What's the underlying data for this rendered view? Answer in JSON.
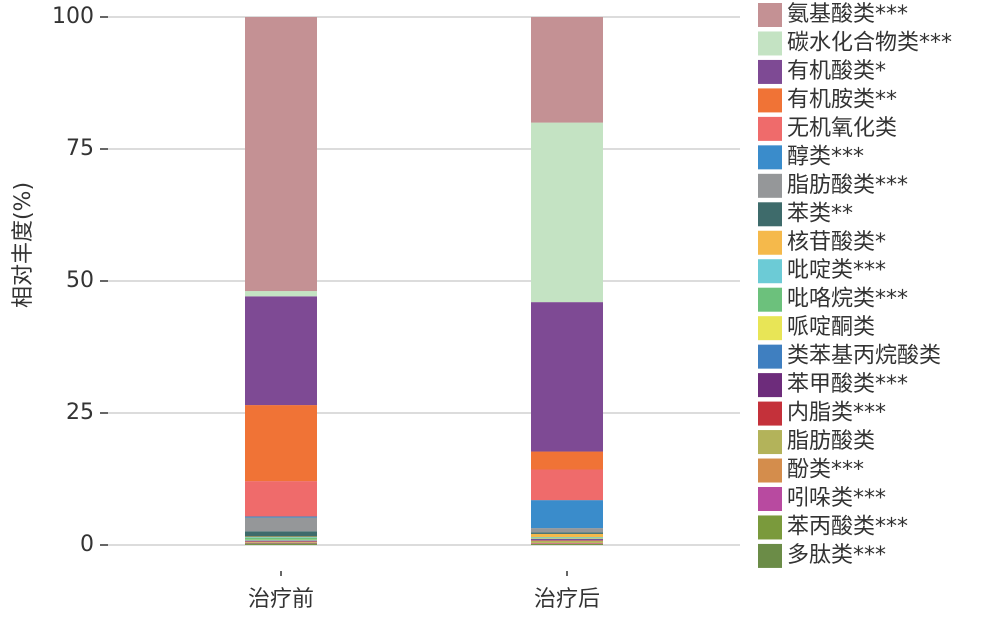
{
  "chart_data": {
    "type": "stacked_bar",
    "ylabel": "相对丰度(%)",
    "categories": [
      "治疗前",
      "治疗后"
    ],
    "ylim": [
      0,
      100
    ],
    "yticks": [
      0,
      25,
      50,
      75,
      100
    ],
    "grid": true,
    "series": [
      {
        "name": "氨基酸类***",
        "color": "#c49194",
        "values": [
          51.9,
          20.0
        ]
      },
      {
        "name": "碳水化合物类***",
        "color": "#c4e3c3",
        "values": [
          1.0,
          34.0
        ]
      },
      {
        "name": "有机酸类*",
        "color": "#7e4a94",
        "values": [
          20.6,
          28.3
        ]
      },
      {
        "name": "有机胺类**",
        "color": "#f07336",
        "values": [
          14.4,
          3.4
        ]
      },
      {
        "name": "无机氧化类",
        "color": "#ef6b6b",
        "values": [
          6.7,
          5.8
        ]
      },
      {
        "name": "醇类***",
        "color": "#3a8ccb",
        "values": [
          0.2,
          5.3
        ]
      },
      {
        "name": "脂肪酸类***",
        "color": "#959799",
        "values": [
          2.6,
          0.8
        ]
      },
      {
        "name": "苯类**",
        "color": "#3e6b6b",
        "values": [
          1.0,
          0.3
        ]
      },
      {
        "name": "核苷酸类*",
        "color": "#f5b94b",
        "values": [
          0.1,
          0.6
        ]
      },
      {
        "name": "吡啶类***",
        "color": "#6ccbd6",
        "values": [
          0.1,
          0.1
        ]
      },
      {
        "name": "吡咯烷类***",
        "color": "#6cc17c",
        "values": [
          0.4,
          0.1
        ]
      },
      {
        "name": "哌啶酮类",
        "color": "#e8e556",
        "values": [
          0.1,
          0.1
        ]
      },
      {
        "name": "类苯基丙烷酸类",
        "color": "#3f7fc0",
        "values": [
          0.1,
          0.1
        ]
      },
      {
        "name": "苯甲酸类***",
        "color": "#6d2c7b",
        "values": [
          0.1,
          0.2
        ]
      },
      {
        "name": "内脂类***",
        "color": "#c4313a",
        "values": [
          0.1,
          0.1
        ]
      },
      {
        "name": "脂肪酸类",
        "color": "#b3b35a",
        "values": [
          0.1,
          0.4
        ]
      },
      {
        "name": "酚类***",
        "color": "#d48d4c",
        "values": [
          0.1,
          0.1
        ]
      },
      {
        "name": "吲哚类***",
        "color": "#b84aa0",
        "values": [
          0.1,
          0.1
        ]
      },
      {
        "name": "苯丙酸类***",
        "color": "#7a9a3c",
        "values": [
          0.2,
          0.1
        ]
      },
      {
        "name": "多肽类***",
        "color": "#6b8c47",
        "values": [
          0.1,
          0.1
        ]
      }
    ]
  }
}
